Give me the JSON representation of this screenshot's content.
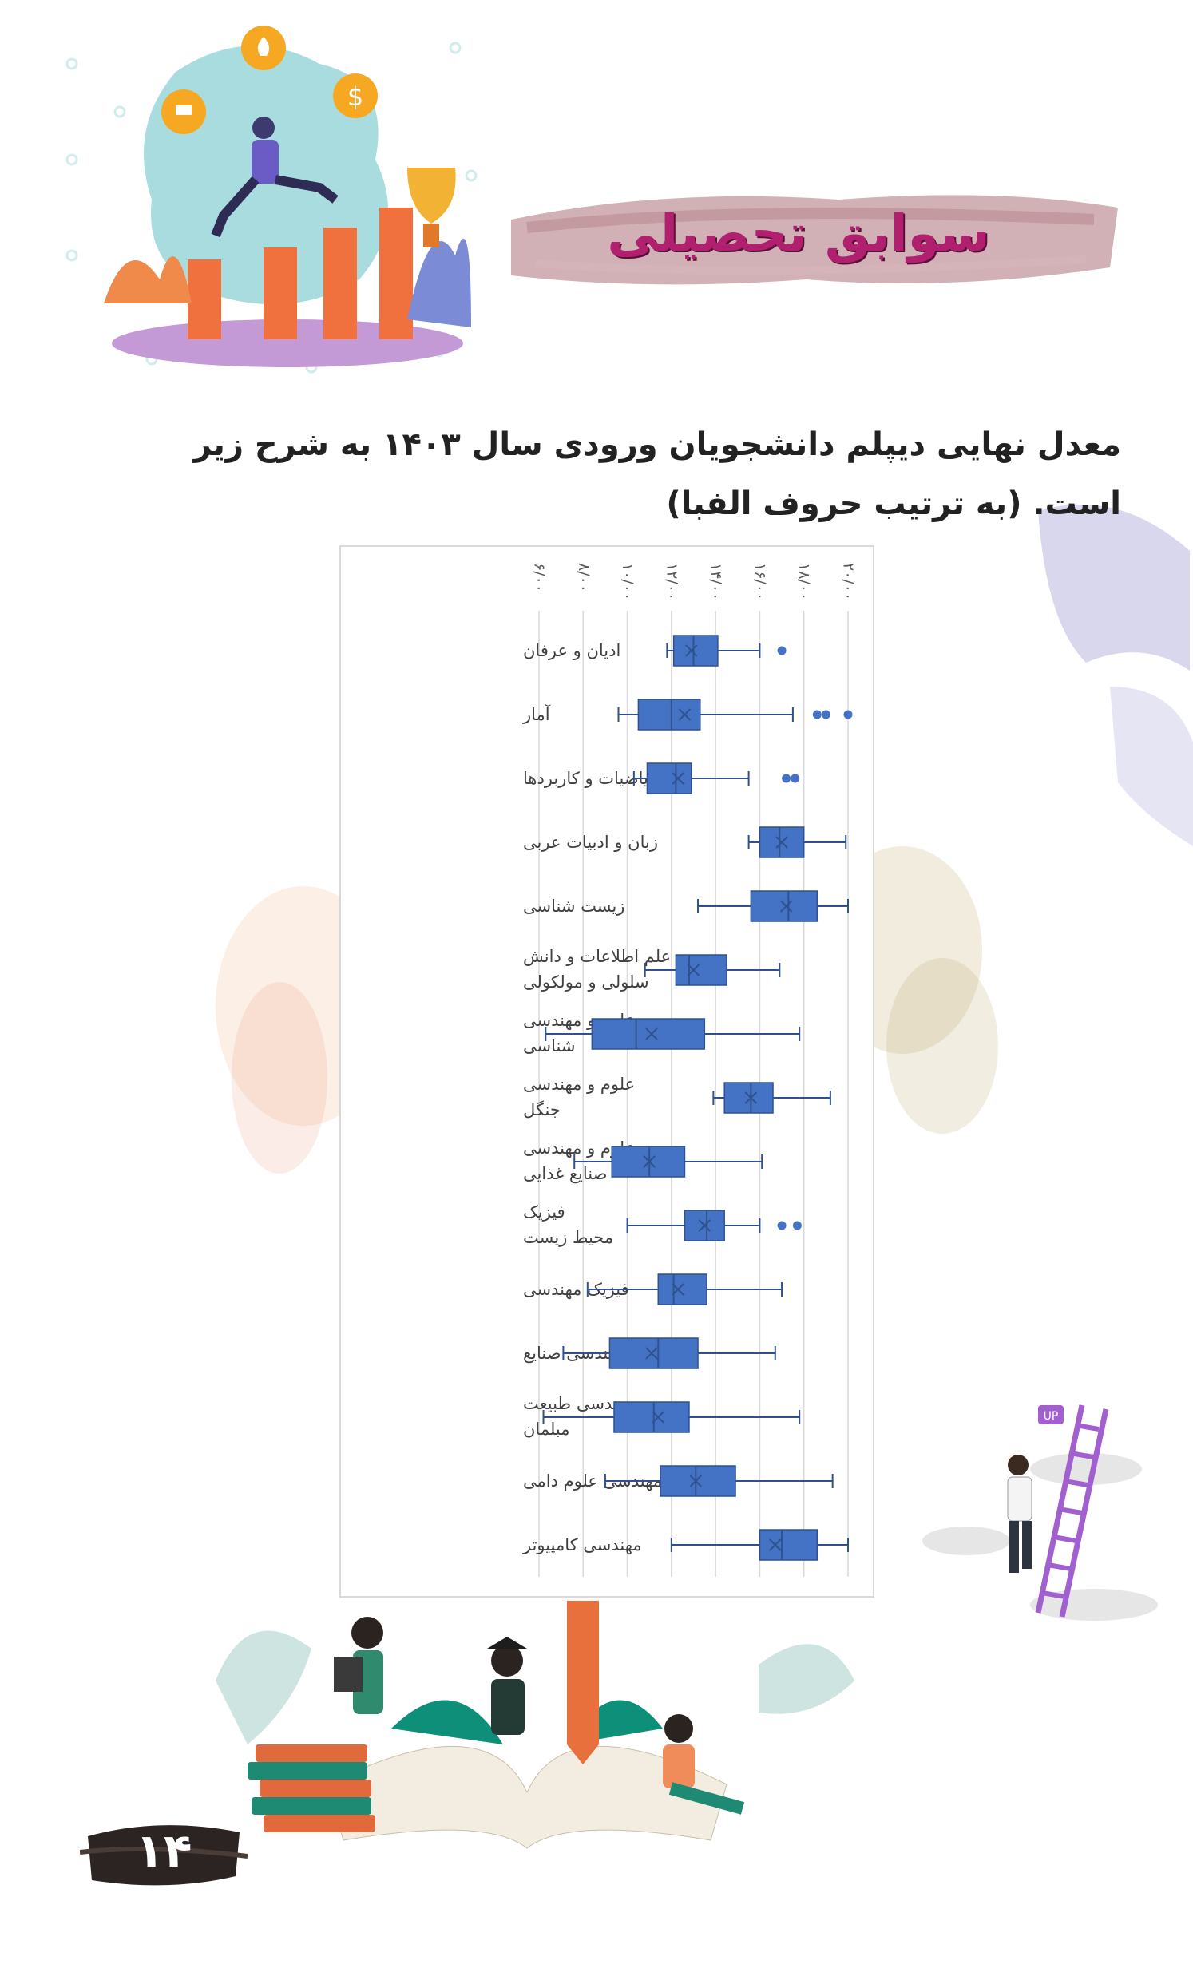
{
  "header": {
    "title": "سوابق تحصیلی"
  },
  "intro": {
    "text": "معدل نهایی دیپلم دانشجویان ورودی سال ۱۴۰۳ به شرح زیر است. (به ترتیب حروف الفبا)"
  },
  "page_number": "۱۴",
  "colors": {
    "box_fill": "#4472c4",
    "box_stroke": "#2f528f",
    "whisker": "#2f528f",
    "gridline": "#d9d9d9",
    "title": "#b0206e"
  },
  "icons": {
    "header": "student-growth-illustration",
    "ladder": "ladder-climber-illustration",
    "footer": "reading-students-illustration"
  },
  "chart_data": {
    "type": "boxplot",
    "orientation": "horizontal",
    "x_ticks": [
      "۶/۰۰",
      "۸/۰۰",
      "۱۰/۰۰",
      "۱۲/۰۰",
      "۱۴/۰۰",
      "۱۶/۰۰",
      "۱۸/۰۰",
      "۲۰/۰۰"
    ],
    "xlim": [
      6,
      20
    ],
    "grid": true,
    "categories": [
      [
        "ادیان و عرفان"
      ],
      [
        "آمار"
      ],
      [
        "ریاضیات و کاربردها"
      ],
      [
        "زبان و ادبیات عربی"
      ],
      [
        "زیست شناسی"
      ],
      [
        "علم اطلاعات و دانش",
        "سلولی و مولکولی"
      ],
      [
        "علوم و مهندسی",
        "شناسی"
      ],
      [
        "علوم و مهندسی",
        "جنگل"
      ],
      [
        "علوم و مهندسی",
        "صنایع غذایی"
      ],
      [
        "فیزیک",
        "محیط زیست"
      ],
      [
        "فیزیک مهندسی"
      ],
      [
        "مهندسی صنایع"
      ],
      [
        "مهندسی طبیعت",
        "مبلمان"
      ],
      [
        "مهندسی علوم دامی"
      ],
      [
        "مهندسی کامپیوتر"
      ]
    ],
    "series": [
      {
        "min": 11.8,
        "q1": 12.1,
        "median": 13.0,
        "q3": 14.1,
        "max": 16.0,
        "mean": 12.9,
        "outliers": [
          17.0
        ]
      },
      {
        "min": 9.6,
        "q1": 10.5,
        "median": 12.0,
        "q3": 13.3,
        "max": 17.5,
        "mean": 12.6,
        "outliers": [
          18.6,
          19.0,
          20.0
        ]
      },
      {
        "min": 10.3,
        "q1": 10.9,
        "median": 12.2,
        "q3": 12.9,
        "max": 15.5,
        "mean": 12.3,
        "outliers": [
          17.2,
          17.6
        ]
      },
      {
        "min": 15.5,
        "q1": 16.0,
        "median": 16.9,
        "q3": 18.0,
        "max": 19.9,
        "mean": 17.0,
        "outliers": []
      },
      {
        "min": 13.2,
        "q1": 15.6,
        "median": 17.3,
        "q3": 18.6,
        "max": 20.0,
        "mean": 17.2,
        "outliers": []
      },
      {
        "min": 10.8,
        "q1": 12.2,
        "median": 12.8,
        "q3": 14.5,
        "max": 16.9,
        "mean": 13.0,
        "outliers": []
      },
      {
        "min": 6.3,
        "q1": 8.4,
        "median": 10.4,
        "q3": 13.5,
        "max": 17.8,
        "mean": 11.1,
        "outliers": []
      },
      {
        "min": 13.9,
        "q1": 14.4,
        "median": 15.6,
        "q3": 16.6,
        "max": 19.2,
        "mean": 15.6,
        "outliers": []
      },
      {
        "min": 7.6,
        "q1": 9.3,
        "median": 11.0,
        "q3": 12.6,
        "max": 16.1,
        "mean": 11.0,
        "outliers": []
      },
      {
        "min": 10.0,
        "q1": 12.6,
        "median": 13.6,
        "q3": 14.4,
        "max": 16.0,
        "mean": 13.5,
        "outliers": [
          17.0,
          17.7
        ]
      },
      {
        "min": 8.2,
        "q1": 11.4,
        "median": 12.1,
        "q3": 13.6,
        "max": 17.0,
        "mean": 12.3,
        "outliers": []
      },
      {
        "min": 7.1,
        "q1": 9.2,
        "median": 11.4,
        "q3": 13.2,
        "max": 16.7,
        "mean": 11.1,
        "outliers": []
      },
      {
        "min": 6.2,
        "q1": 9.4,
        "median": 11.2,
        "q3": 12.8,
        "max": 17.8,
        "mean": 11.4,
        "outliers": []
      },
      {
        "min": 9.0,
        "q1": 11.5,
        "median": 13.1,
        "q3": 14.9,
        "max": 19.3,
        "mean": 13.1,
        "outliers": []
      },
      {
        "min": 12.0,
        "q1": 16.0,
        "median": 17.0,
        "q3": 18.6,
        "max": 20.0,
        "mean": 16.7,
        "outliers": []
      }
    ]
  }
}
